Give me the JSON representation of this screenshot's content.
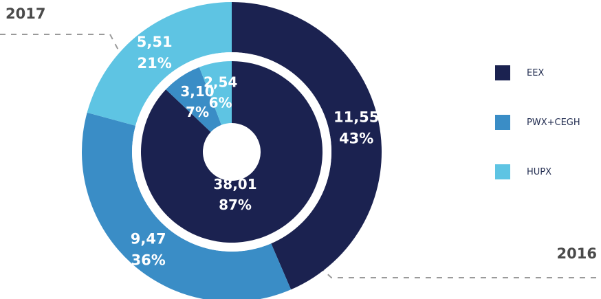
{
  "chart_data": {
    "type": "donut",
    "year_labels": {
      "outer": "2017",
      "inner": "2016"
    },
    "colors": {
      "EEX": "#1b2250",
      "PWX+CEGH": "#3a8dc6",
      "HUPX": "#5ec4e3"
    },
    "legend": [
      {
        "name": "EEX",
        "color": "#1b2250"
      },
      {
        "name": "PWX+CEGH",
        "color": "#3a8dc6"
      },
      {
        "name": "HUPX",
        "color": "#5ec4e3"
      }
    ],
    "rings": [
      {
        "year": "2017",
        "ring": "outer",
        "slices": [
          {
            "name": "EEX",
            "value": 11.55,
            "value_label": "11,55",
            "percent_label": "43%"
          },
          {
            "name": "PWX+CEGH",
            "value": 9.47,
            "value_label": "9,47",
            "percent_label": "36%"
          },
          {
            "name": "HUPX",
            "value": 5.51,
            "value_label": "5,51",
            "percent_label": "21%"
          }
        ]
      },
      {
        "year": "2016",
        "ring": "inner",
        "slices": [
          {
            "name": "EEX",
            "value": 38.01,
            "value_label": "38,01",
            "percent_label": "87%"
          },
          {
            "name": "PWX+CEGH",
            "value": 3.1,
            "value_label": "3,10",
            "percent_label": "7%"
          },
          {
            "name": "HUPX",
            "value": 2.54,
            "value_label": "2,54",
            "percent_label": "6%"
          }
        ]
      }
    ]
  }
}
